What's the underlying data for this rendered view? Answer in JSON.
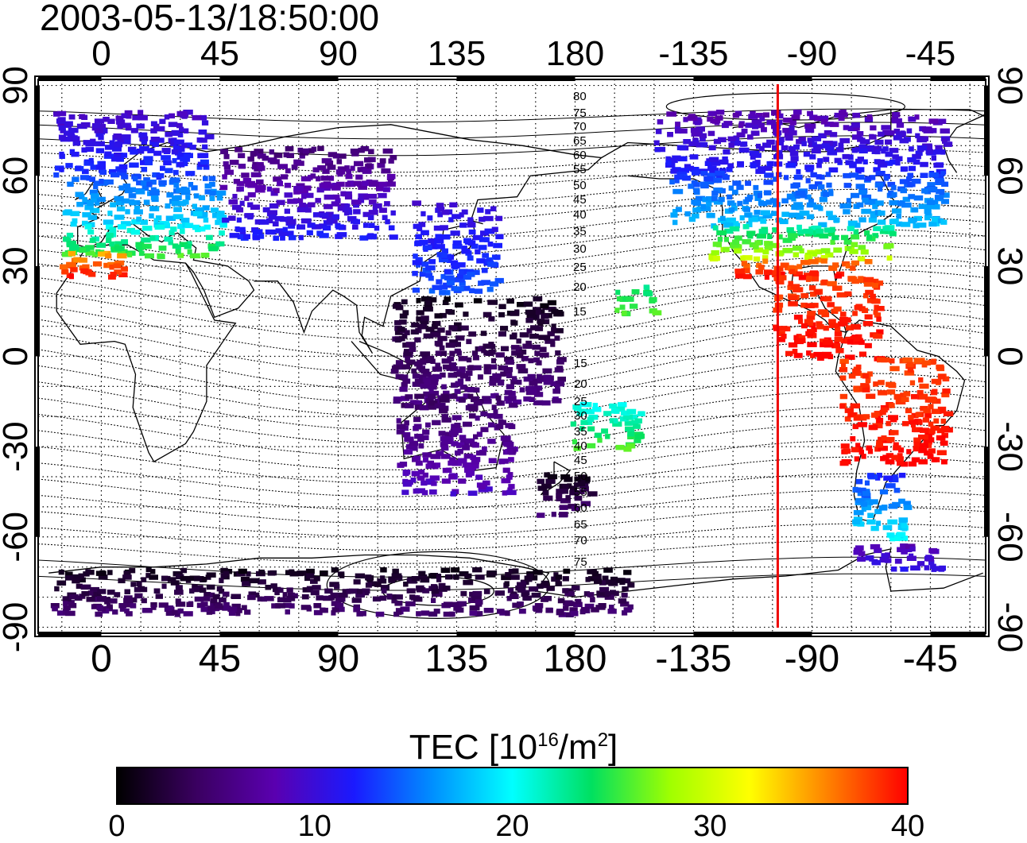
{
  "title": "2003-05-13/18:50:00",
  "map": {
    "x_tick_labels": [
      "0",
      "45",
      "90",
      "135",
      "180",
      "-135",
      "-90",
      "-45"
    ],
    "x_tick_lons": [
      0,
      45,
      90,
      135,
      180,
      225,
      270,
      315
    ],
    "y_tick_labels": [
      "90",
      "60",
      "30",
      "0",
      "-30",
      "-60",
      "-90"
    ],
    "y_tick_lats": [
      90,
      60,
      30,
      0,
      -30,
      -60,
      -90
    ],
    "lon_range": [
      -24,
      336
    ],
    "lat_range": [
      -92,
      92
    ],
    "grid": true,
    "meridian_marker": {
      "lon": 257,
      "color": "#ee0000"
    },
    "contour_labels_north": [
      "80",
      "75",
      "70",
      "65",
      "60",
      "55",
      "50",
      "45",
      "40",
      "35",
      "30",
      "25",
      "20",
      "15"
    ],
    "contour_labels_south": [
      "15",
      "20",
      "25",
      "30",
      "35",
      "40",
      "45",
      "50",
      "55",
      "60",
      "65",
      "70",
      "75"
    ]
  },
  "colorbar": {
    "title_main": "TEC  [10",
    "title_sup1": "16",
    "title_mid": "/m",
    "title_sup2": "2",
    "title_end": "]",
    "ticks": [
      "0",
      "10",
      "20",
      "30",
      "40"
    ],
    "range": [
      0,
      40
    ],
    "colors": [
      "#000000",
      "#3a0060",
      "#5a00b0",
      "#1a1aff",
      "#0090ff",
      "#00ffff",
      "#00e060",
      "#a0ff00",
      "#ffff00",
      "#ff8000",
      "#ff0000"
    ]
  },
  "tec_regions": [
    {
      "name": "europe-north",
      "lon": [
        -20,
        40
      ],
      "lat": [
        60,
        82
      ],
      "tec": [
        9,
        13
      ]
    },
    {
      "name": "europe-mid",
      "lon": [
        -15,
        45
      ],
      "lat": [
        44,
        60
      ],
      "tec": [
        14,
        19
      ]
    },
    {
      "name": "europe-south",
      "lon": [
        -15,
        45
      ],
      "lat": [
        34,
        44
      ],
      "tec": [
        20,
        26
      ]
    },
    {
      "name": "iberia",
      "lon": [
        -18,
        8
      ],
      "lat": [
        27,
        36
      ],
      "tec": [
        34,
        40
      ]
    },
    {
      "name": "siberia",
      "lon": [
        45,
        110
      ],
      "lat": [
        40,
        70
      ],
      "tec": [
        5,
        12
      ]
    },
    {
      "name": "japan",
      "lon": [
        118,
        150
      ],
      "lat": [
        22,
        52
      ],
      "tec": [
        10,
        14
      ]
    },
    {
      "name": "pacific-west",
      "lon": [
        110,
        175
      ],
      "lat": [
        -15,
        20
      ],
      "tec": [
        1,
        6
      ]
    },
    {
      "name": "australia",
      "lon": [
        112,
        155
      ],
      "lat": [
        -45,
        -12
      ],
      "tec": [
        4,
        9
      ]
    },
    {
      "name": "nz",
      "lon": [
        165,
        185
      ],
      "lat": [
        -52,
        -38
      ],
      "tec": [
        1,
        5
      ]
    },
    {
      "name": "pacific-sw",
      "lon": [
        178,
        205
      ],
      "lat": [
        -30,
        -15
      ],
      "tec": [
        20,
        26
      ]
    },
    {
      "name": "antarctic",
      "lon": [
        -20,
        200
      ],
      "lat": [
        -85,
        -70
      ],
      "tec": [
        1,
        5
      ]
    },
    {
      "name": "canada-north",
      "lon": [
        210,
        320
      ],
      "lat": [
        62,
        82
      ],
      "tec": [
        8,
        12
      ]
    },
    {
      "name": "canada-mid",
      "lon": [
        215,
        320
      ],
      "lat": [
        44,
        62
      ],
      "tec": [
        13,
        18
      ]
    },
    {
      "name": "usa",
      "lon": [
        230,
        300
      ],
      "lat": [
        33,
        44
      ],
      "tec": [
        22,
        30
      ]
    },
    {
      "name": "usa-south",
      "lon": [
        240,
        290
      ],
      "lat": [
        27,
        33
      ],
      "tec": [
        36,
        40
      ]
    },
    {
      "name": "central-america",
      "lon": [
        255,
        295
      ],
      "lat": [
        0,
        27
      ],
      "tec": [
        38,
        40
      ]
    },
    {
      "name": "south-america",
      "lon": [
        280,
        320
      ],
      "lat": [
        -35,
        0
      ],
      "tec": [
        38,
        40
      ]
    },
    {
      "name": "patagonia",
      "lon": [
        285,
        305
      ],
      "lat": [
        -60,
        -38
      ],
      "tec": [
        12,
        20
      ]
    },
    {
      "name": "south-atlantic",
      "lon": [
        285,
        320
      ],
      "lat": [
        -70,
        -62
      ],
      "tec": [
        8,
        11
      ]
    },
    {
      "name": "hawaii",
      "lon": [
        195,
        210
      ],
      "lat": [
        15,
        25
      ],
      "tec": [
        23,
        26
      ]
    }
  ]
}
